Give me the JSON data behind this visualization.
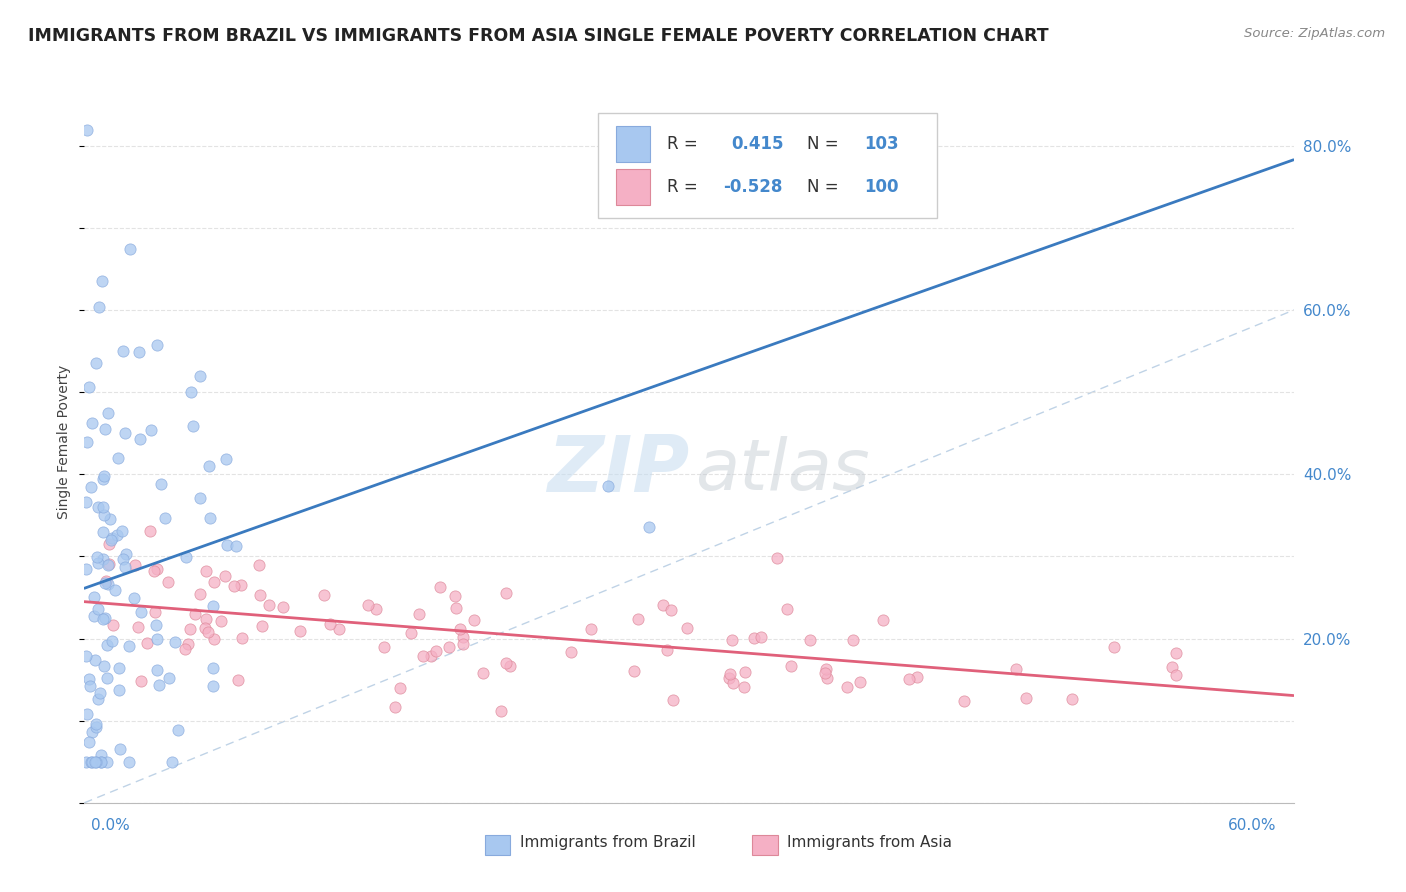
{
  "title": "IMMIGRANTS FROM BRAZIL VS IMMIGRANTS FROM ASIA SINGLE FEMALE POVERTY CORRELATION CHART",
  "source": "Source: ZipAtlas.com",
  "ylabel": "Single Female Poverty",
  "xlim": [
    0.0,
    0.6
  ],
  "ylim": [
    0.0,
    0.88
  ],
  "brazil_R": 0.415,
  "brazil_N": 103,
  "asia_R": -0.528,
  "asia_N": 100,
  "brazil_color": "#a8c8f0",
  "brazil_edge_color": "#88aadd",
  "brazil_line_color": "#3a7abf",
  "asia_color": "#f5b0c5",
  "asia_edge_color": "#dd8899",
  "asia_line_color": "#e0607a",
  "background_color": "#ffffff",
  "grid_color": "#e0e0e0",
  "diag_color": "#b0c8e0",
  "brazil_seed": 7,
  "asia_seed": 13
}
